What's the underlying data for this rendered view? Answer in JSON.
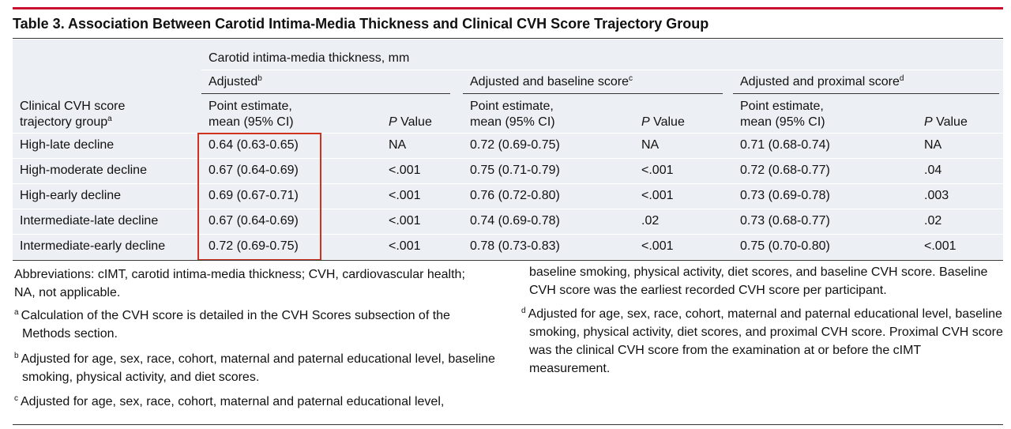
{
  "title": "Table 3. Association Between Carotid Intima-Media Thickness and Clinical CVH Score Trajectory Group",
  "table": {
    "group_label": "Clinical CVH score\ntrajectory group",
    "group_superscript": "a",
    "span_label": "Carotid intima-media thickness, mm",
    "subheaders": [
      {
        "label": "Adjusted",
        "superscript": "b"
      },
      {
        "label": "Adjusted and baseline score",
        "superscript": "c"
      },
      {
        "label": "Adjusted and proximal score",
        "superscript": "d"
      }
    ],
    "estimate_label": "Point estimate,\nmean (95% CI)",
    "p_label": {
      "italic": "P",
      "text": " Value"
    },
    "rows": [
      [
        "High-late decline",
        "0.64 (0.63-0.65)",
        "NA",
        "0.72 (0.69-0.75)",
        "NA",
        "0.71 (0.68-0.74)",
        "NA"
      ],
      [
        "High-moderate decline",
        "0.67 (0.64-0.69)",
        "<.001",
        "0.75 (0.71-0.79)",
        "<.001",
        "0.72 (0.68-0.77)",
        ".04"
      ],
      [
        "High-early decline",
        "0.69 (0.67-0.71)",
        "<.001",
        "0.76 (0.72-0.80)",
        "<.001",
        "0.73 (0.69-0.78)",
        ".003"
      ],
      [
        "Intermediate-late decline",
        "0.67 (0.64-0.69)",
        "<.001",
        "0.74 (0.69-0.78)",
        ".02",
        "0.73 (0.68-0.77)",
        ".02"
      ],
      [
        "Intermediate-early decline",
        "0.72 (0.69-0.75)",
        "<.001",
        "0.78 (0.73-0.83)",
        "<.001",
        "0.75 (0.70-0.80)",
        "<.001"
      ]
    ]
  },
  "footnotes": {
    "abbreviations": "Abbreviations: cIMT, carotid intima-media thickness; CVH, cardiovascular health; NA, not applicable.",
    "notes": [
      {
        "mark": "a",
        "text": "Calculation of the CVH score is detailed in the CVH Scores subsection of the Methods section."
      },
      {
        "mark": "b",
        "text": "Adjusted for age, sex, race, cohort, maternal and paternal educational level, baseline smoking, physical activity, and diet scores."
      },
      {
        "mark": "c",
        "text": "Adjusted for age, sex, race, cohort, maternal and paternal educational level,",
        "continued": "baseline smoking, physical activity, diet scores, and baseline CVH score. Baseline CVH score was the earliest recorded CVH score per participant."
      },
      {
        "mark": "d",
        "text": "Adjusted for age, sex, race, cohort, maternal and paternal educational level, baseline smoking, physical activity, diet scores, and proximal CVH score. Proximal CVH score was the clinical CVH score from the examination at or before the cIMT measurement."
      }
    ]
  }
}
